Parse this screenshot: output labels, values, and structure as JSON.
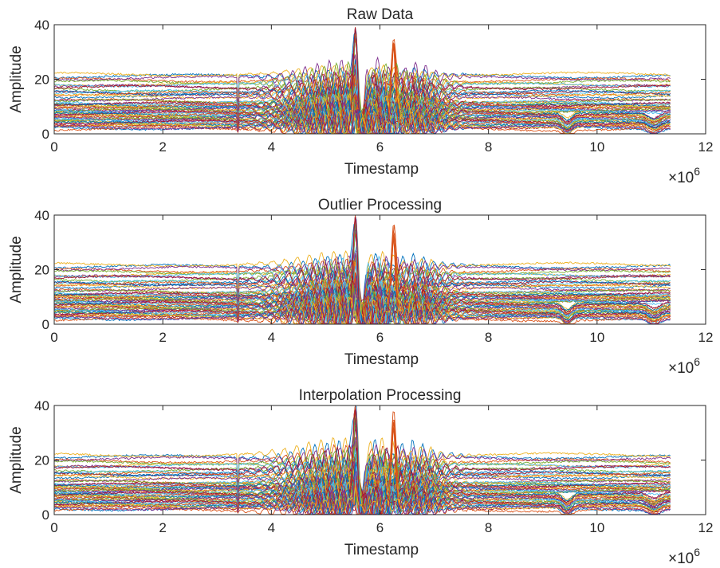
{
  "chart_data": [
    {
      "type": "line",
      "title": "Raw Data",
      "xlabel": "Timestamp",
      "ylabel": "Amplitude",
      "x_exponent_base": "×10",
      "x_exponent_power": "6",
      "xlim": [
        0,
        12000000
      ],
      "ylim": [
        0,
        40
      ],
      "xticks": [
        0,
        2,
        4,
        6,
        8,
        10,
        12
      ],
      "yticks": [
        0,
        20,
        40
      ],
      "data_x_range": [
        0,
        11350000
      ],
      "series_count": 60,
      "series_baselines": [
        21,
        19.5,
        18,
        17,
        16,
        15,
        14.5,
        13.5,
        12.5,
        11.5,
        11,
        10.5,
        10,
        9.5,
        9,
        8.5,
        8,
        7.5,
        7,
        6.5,
        6,
        5.5,
        5,
        4.5,
        4,
        3.5,
        3,
        2.5,
        2,
        1.5
      ],
      "peak": {
        "x": 5550000,
        "y": 38
      },
      "secondary_peak": {
        "x": 6250000,
        "y": 34
      },
      "legend": "none",
      "grid": false
    },
    {
      "type": "line",
      "title": "Outlier Processing",
      "xlabel": "Timestamp",
      "ylabel": "Amplitude",
      "x_exponent_base": "×10",
      "x_exponent_power": "6",
      "xlim": [
        0,
        12000000
      ],
      "ylim": [
        0,
        40
      ],
      "xticks": [
        0,
        2,
        4,
        6,
        8,
        10,
        12
      ],
      "yticks": [
        0,
        20,
        40
      ],
      "data_x_range": [
        0,
        11350000
      ],
      "series_count": 60,
      "series_baselines": [
        21,
        19.5,
        18,
        17,
        16,
        15,
        14.5,
        13.5,
        12.5,
        11.5,
        11,
        10.5,
        10,
        9.5,
        9,
        8.5,
        8,
        7.5,
        7,
        6.5,
        6,
        5.5,
        5,
        4.5,
        4,
        3.5,
        3,
        2.5,
        2,
        1.5
      ],
      "peak": {
        "x": 5550000,
        "y": 38
      },
      "secondary_peak": {
        "x": 6250000,
        "y": 34
      },
      "legend": "none",
      "grid": false
    },
    {
      "type": "line",
      "title": "Interpolation Processing",
      "xlabel": "Timestamp",
      "ylabel": "Amplitude",
      "x_exponent_base": "×10",
      "x_exponent_power": "6",
      "xlim": [
        0,
        12000000
      ],
      "ylim": [
        0,
        40
      ],
      "xticks": [
        0,
        2,
        4,
        6,
        8,
        10,
        12
      ],
      "yticks": [
        0,
        20,
        40
      ],
      "data_x_range": [
        0,
        11350000
      ],
      "series_count": 60,
      "series_baselines": [
        21,
        19.5,
        18,
        17,
        16,
        15,
        14.5,
        13.5,
        12.5,
        11.5,
        11,
        10.5,
        10,
        9.5,
        9,
        8.5,
        8,
        7.5,
        7,
        6.5,
        6,
        5.5,
        5,
        4.5,
        4,
        3.5,
        3,
        2.5,
        2,
        1.5
      ],
      "peak": {
        "x": 5550000,
        "y": 38
      },
      "secondary_peak": {
        "x": 6250000,
        "y": 34
      },
      "legend": "none",
      "grid": false
    }
  ],
  "colors": {
    "palette": [
      "#0072BD",
      "#D95319",
      "#EDB120",
      "#7E2F8E",
      "#77AC30",
      "#4DBEEE",
      "#A2142F"
    ],
    "axis": "#262626",
    "background": "#ffffff"
  }
}
